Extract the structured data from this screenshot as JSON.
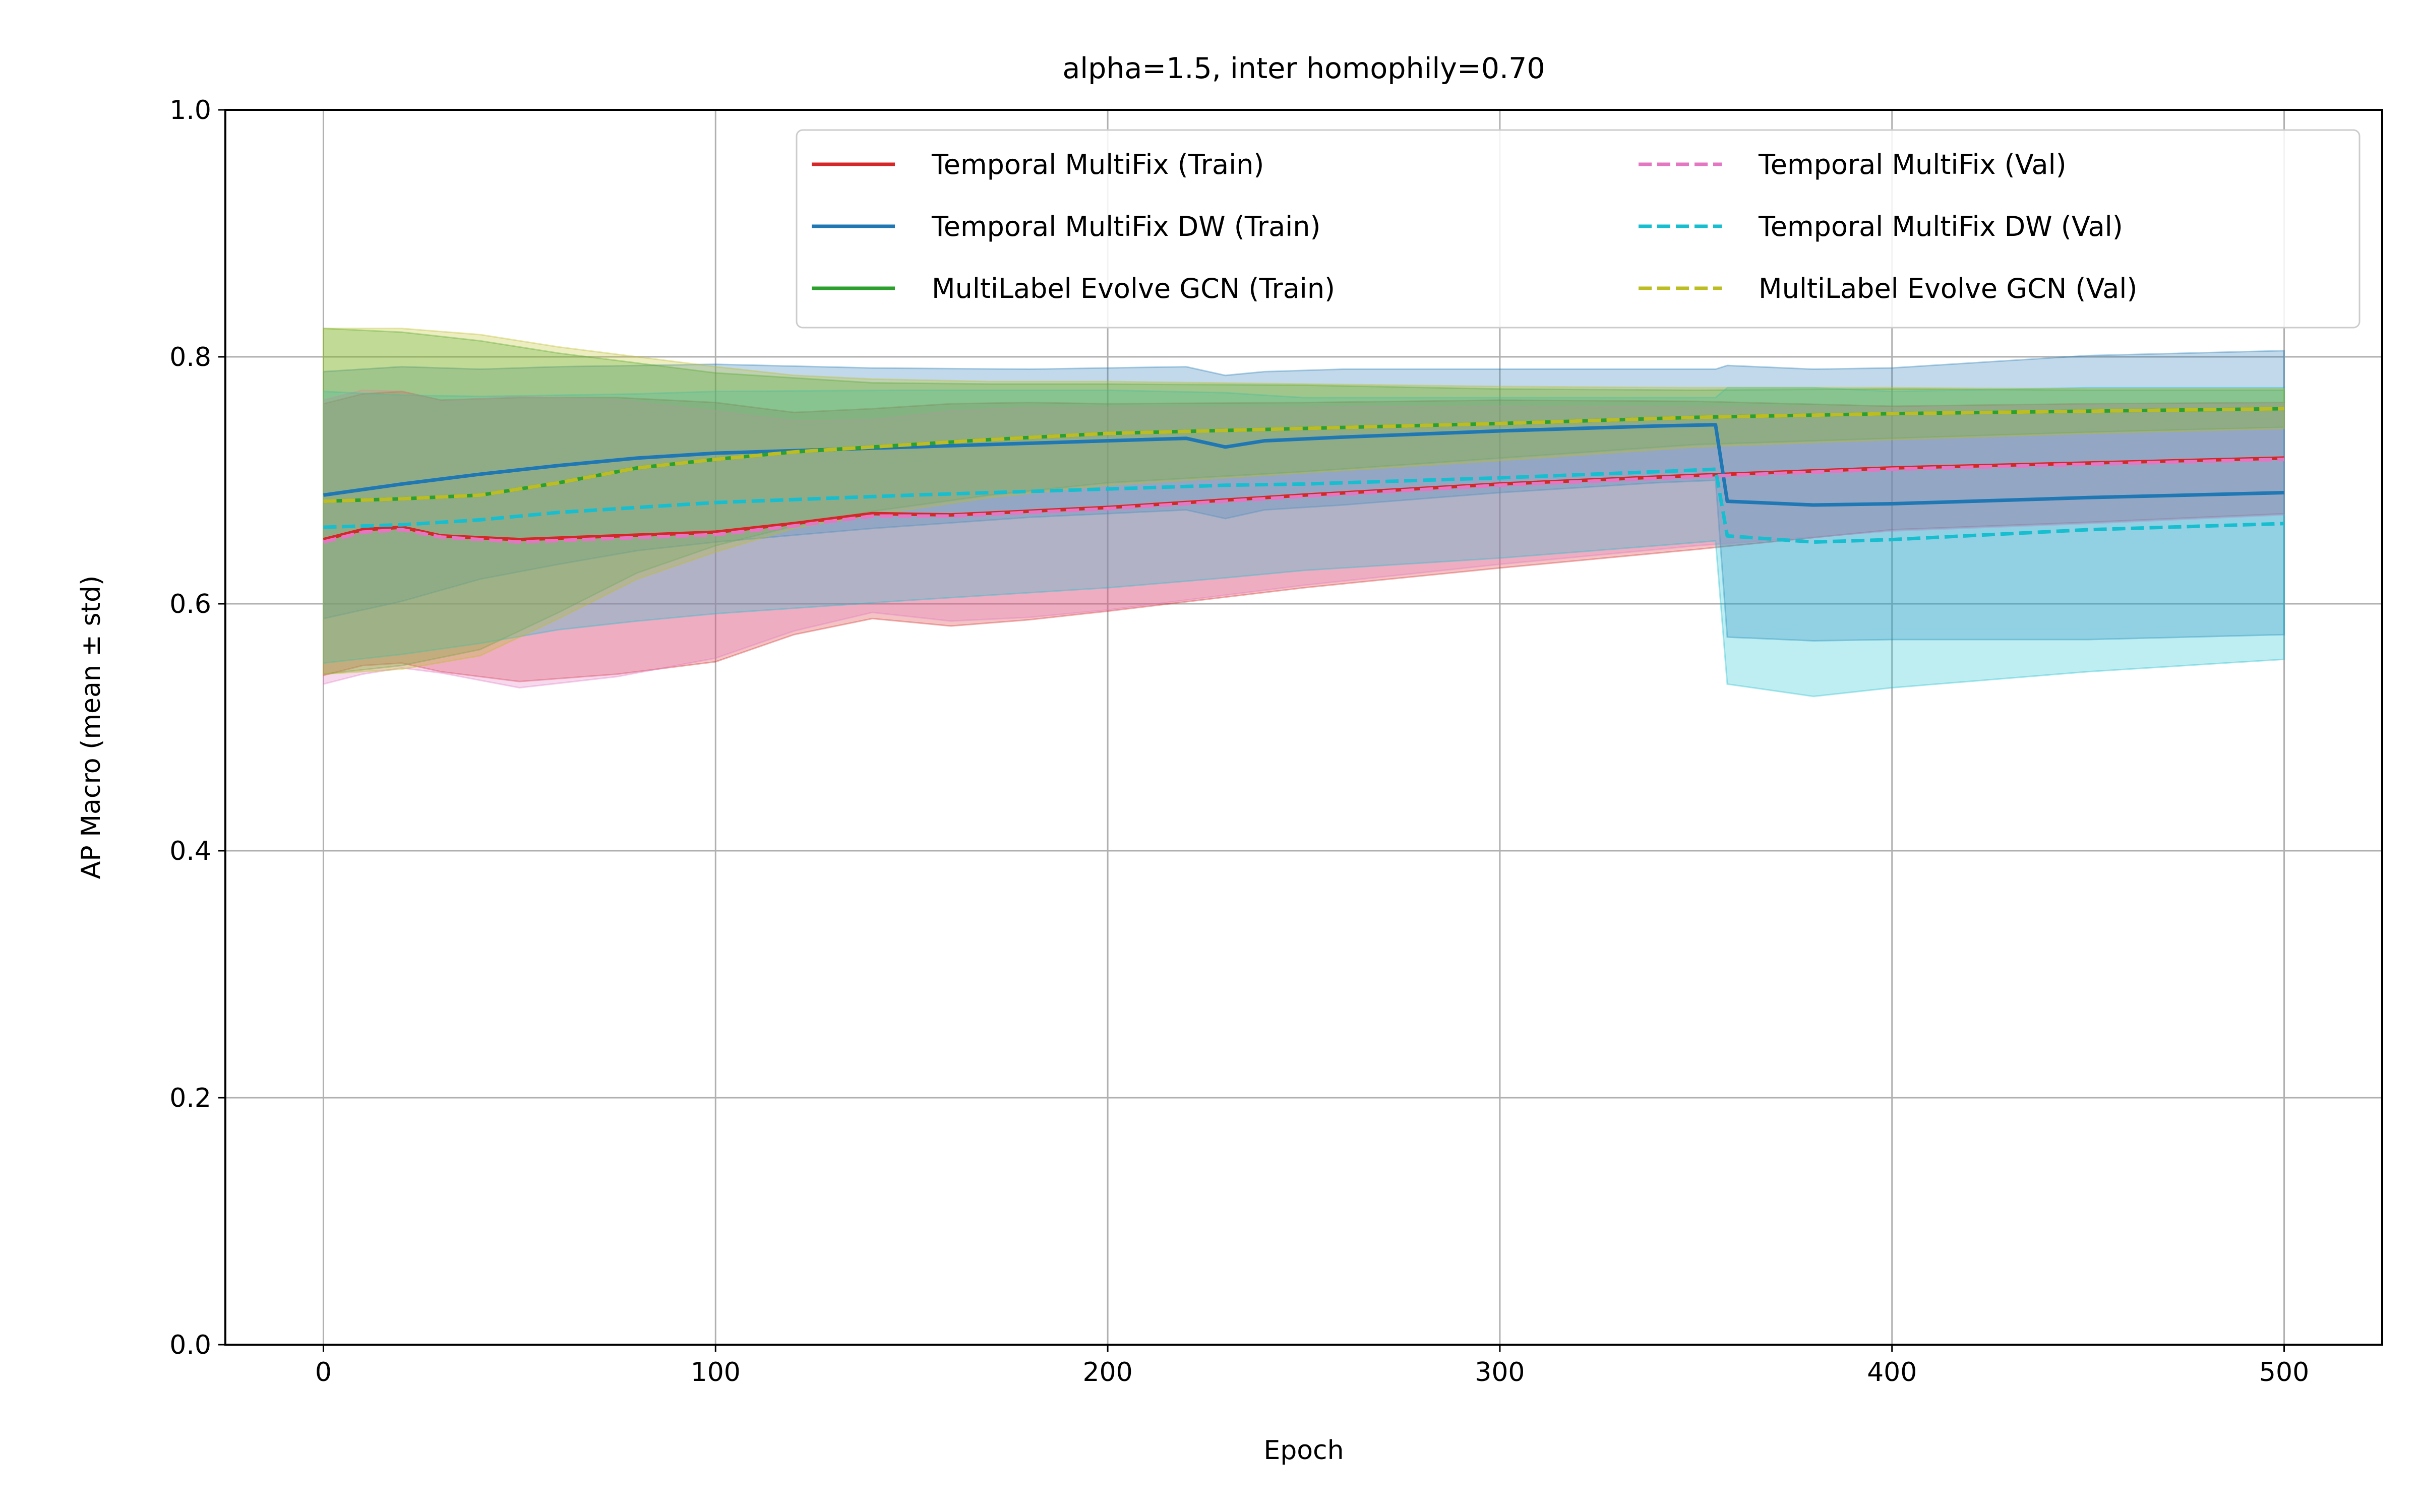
{
  "chart_data": {
    "type": "line",
    "title": "alpha=1.5, inter homophily=0.70",
    "xlabel": "Epoch",
    "ylabel": "AP Macro (mean ± std)",
    "xlim": [
      -25,
      525
    ],
    "ylim": [
      0.0,
      1.0
    ],
    "xticks": [
      0,
      100,
      200,
      300,
      400,
      500
    ],
    "xtick_labels": [
      "0",
      "100",
      "200",
      "300",
      "400",
      "500"
    ],
    "yticks": [
      0.0,
      0.2,
      0.4,
      0.6,
      0.8,
      1.0
    ],
    "ytick_labels": [
      "0.0",
      "0.2",
      "0.4",
      "0.6",
      "0.8",
      "1.0"
    ],
    "grid": true,
    "legend_position": "upper right",
    "legend_columns": 2,
    "series": [
      {
        "name": "Temporal MultiFix (Train)",
        "color": "#d62728",
        "style": "solid",
        "x": [
          0,
          10,
          20,
          30,
          50,
          75,
          100,
          120,
          140,
          160,
          180,
          200,
          250,
          300,
          350,
          400,
          450,
          500
        ],
        "mean": [
          0.652,
          0.66,
          0.662,
          0.655,
          0.652,
          0.655,
          0.658,
          0.665,
          0.673,
          0.672,
          0.675,
          0.678,
          0.688,
          0.697,
          0.704,
          0.71,
          0.714,
          0.718
        ],
        "std": [
          0.11,
          0.11,
          0.11,
          0.11,
          0.115,
          0.112,
          0.105,
          0.09,
          0.085,
          0.09,
          0.088,
          0.084,
          0.075,
          0.068,
          0.06,
          0.05,
          0.048,
          0.045
        ]
      },
      {
        "name": "Temporal MultiFix DW (Train)",
        "color": "#1f77b4",
        "style": "solid",
        "x": [
          0,
          20,
          40,
          60,
          80,
          100,
          140,
          180,
          220,
          230,
          240,
          260,
          300,
          340,
          355,
          358,
          380,
          400,
          450,
          500
        ],
        "mean": [
          0.688,
          0.697,
          0.705,
          0.712,
          0.718,
          0.722,
          0.726,
          0.73,
          0.734,
          0.727,
          0.732,
          0.735,
          0.74,
          0.744,
          0.745,
          0.683,
          0.68,
          0.681,
          0.686,
          0.69
        ],
        "std": [
          0.1,
          0.095,
          0.085,
          0.08,
          0.075,
          0.072,
          0.065,
          0.06,
          0.058,
          0.058,
          0.056,
          0.055,
          0.05,
          0.046,
          0.045,
          0.11,
          0.11,
          0.11,
          0.115,
          0.115
        ]
      },
      {
        "name": "MultiLabel Evolve GCN (Train)",
        "color": "#2ca02c",
        "style": "solid",
        "x": [
          0,
          20,
          40,
          60,
          80,
          100,
          120,
          140,
          170,
          200,
          250,
          300,
          350,
          400,
          450,
          500
        ],
        "mean": [
          0.683,
          0.685,
          0.688,
          0.698,
          0.71,
          0.717,
          0.723,
          0.727,
          0.733,
          0.738,
          0.742,
          0.746,
          0.751,
          0.754,
          0.756,
          0.758
        ],
        "std": [
          0.14,
          0.135,
          0.125,
          0.105,
          0.085,
          0.07,
          0.06,
          0.052,
          0.045,
          0.04,
          0.035,
          0.028,
          0.022,
          0.02,
          0.017,
          0.015
        ]
      },
      {
        "name": "Temporal MultiFix (Val)",
        "color": "#e377c2",
        "style": "dashed",
        "x": [
          0,
          10,
          20,
          30,
          50,
          75,
          100,
          120,
          140,
          160,
          180,
          200,
          250,
          300,
          350,
          400,
          450,
          500
        ],
        "mean": [
          0.65,
          0.658,
          0.66,
          0.654,
          0.65,
          0.653,
          0.656,
          0.663,
          0.671,
          0.671,
          0.674,
          0.677,
          0.687,
          0.696,
          0.703,
          0.709,
          0.713,
          0.717
        ],
        "std": [
          0.115,
          0.115,
          0.112,
          0.11,
          0.118,
          0.112,
          0.1,
          0.085,
          0.078,
          0.085,
          0.085,
          0.082,
          0.072,
          0.064,
          0.056,
          0.05,
          0.048,
          0.045
        ]
      },
      {
        "name": "Temporal MultiFix DW (Val)",
        "color": "#17becf",
        "style": "dashed",
        "x": [
          0,
          20,
          40,
          60,
          80,
          100,
          150,
          200,
          230,
          250,
          300,
          340,
          355,
          358,
          380,
          400,
          450,
          500
        ],
        "mean": [
          0.662,
          0.664,
          0.668,
          0.674,
          0.678,
          0.682,
          0.688,
          0.693,
          0.696,
          0.697,
          0.702,
          0.707,
          0.709,
          0.655,
          0.65,
          0.652,
          0.66,
          0.665
        ],
        "std": [
          0.11,
          0.105,
          0.1,
          0.095,
          0.092,
          0.09,
          0.085,
          0.08,
          0.075,
          0.07,
          0.065,
          0.06,
          0.058,
          0.12,
          0.125,
          0.12,
          0.115,
          0.11
        ]
      },
      {
        "name": "MultiLabel Evolve GCN (Val)",
        "color": "#bcbd22",
        "style": "dashed",
        "x": [
          0,
          20,
          40,
          60,
          80,
          100,
          120,
          140,
          170,
          200,
          250,
          300,
          350,
          400,
          450,
          500
        ],
        "mean": [
          0.683,
          0.685,
          0.688,
          0.698,
          0.71,
          0.717,
          0.723,
          0.727,
          0.733,
          0.738,
          0.742,
          0.746,
          0.751,
          0.754,
          0.756,
          0.758
        ],
        "std": [
          0.14,
          0.138,
          0.13,
          0.11,
          0.09,
          0.075,
          0.062,
          0.055,
          0.047,
          0.042,
          0.036,
          0.03,
          0.024,
          0.021,
          0.018,
          0.016
        ]
      }
    ]
  }
}
